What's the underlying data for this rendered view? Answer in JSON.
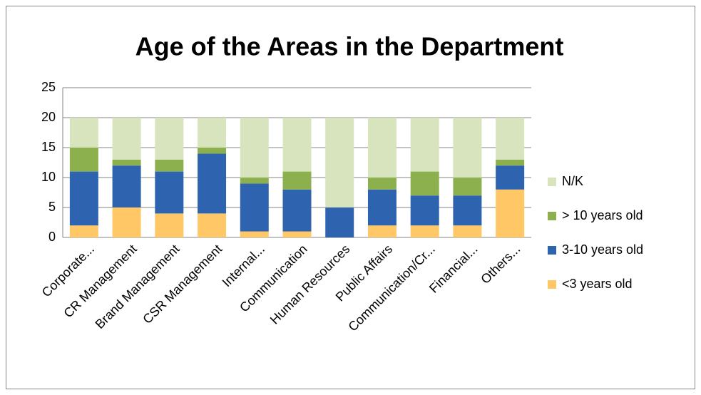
{
  "chart_data": {
    "type": "stacked_bar",
    "title": "Age of the Areas in the Department",
    "categories": [
      "Corporate...",
      "CR Management",
      "Brand Management",
      "CSR Management",
      "Internal...",
      "Communication",
      "Human Resources",
      "Public Affairs",
      "Communication/Cr...",
      "Financial...",
      "Others..."
    ],
    "series": [
      {
        "name": "<3 years old",
        "color": "#FFC766",
        "values": [
          2,
          5,
          4,
          4,
          1,
          1,
          0,
          2,
          2,
          2,
          8
        ]
      },
      {
        "name": "3-10 years old",
        "color": "#2E63B0",
        "values": [
          9,
          7,
          7,
          10,
          8,
          7,
          5,
          6,
          5,
          5,
          4
        ]
      },
      {
        "name": "> 10 years old",
        "color": "#8DB04E",
        "values": [
          4,
          1,
          2,
          1,
          1,
          3,
          0,
          2,
          4,
          3,
          1
        ]
      },
      {
        "name": "N/K",
        "color": "#D7E4BD",
        "values": [
          5,
          7,
          7,
          5,
          10,
          9,
          15,
          10,
          9,
          10,
          7
        ]
      }
    ],
    "ylim": [
      0,
      25
    ],
    "yticks": [
      0,
      5,
      10,
      15,
      20,
      25
    ],
    "grid": true,
    "legend": "right"
  }
}
